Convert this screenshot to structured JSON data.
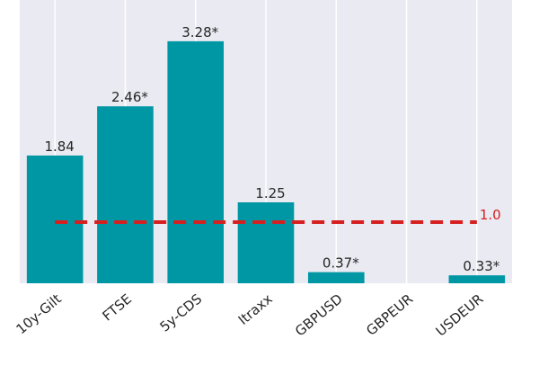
{
  "chart_data": {
    "type": "bar",
    "categories": [
      "10y-Gilt",
      "FTSE",
      "5y-CDS",
      "Itraxx",
      "GBPUSD",
      "GBPEUR",
      "USDEUR"
    ],
    "values": [
      1.84,
      2.46,
      3.28,
      1.25,
      0.37,
      null,
      0.33
    ],
    "value_labels": [
      "1.84",
      "2.46*",
      "3.28*",
      "1.25",
      "0.37*",
      null,
      "0.33*"
    ],
    "color": "#0097a5",
    "ylim": [
      0.23,
      3.8
    ],
    "grid": true,
    "hline": {
      "value": 1.0,
      "label": "1.0",
      "color": "#d62020"
    }
  }
}
